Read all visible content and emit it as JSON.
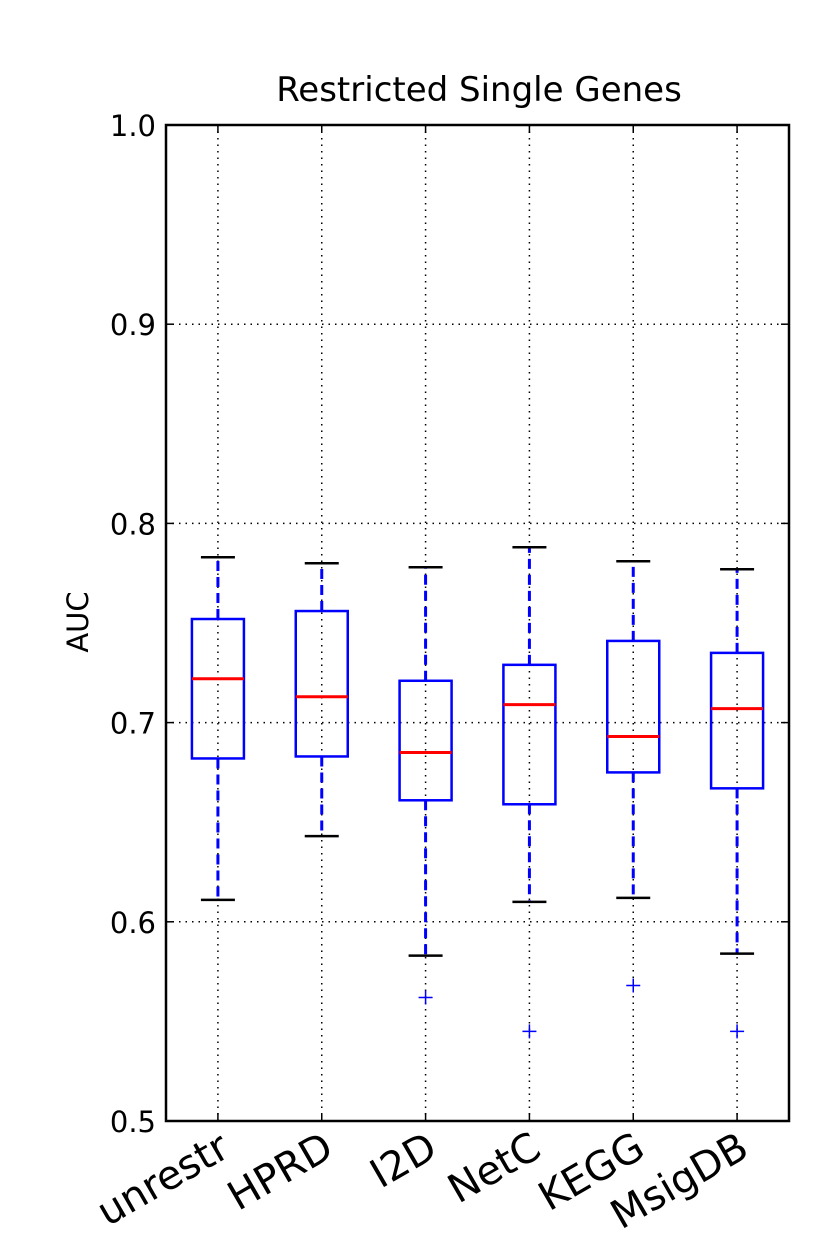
{
  "chart_data": {
    "type": "boxplot",
    "title": "Restricted Single Genes",
    "xlabel": "",
    "ylabel": "AUC",
    "ylim": [
      0.5,
      1.0
    ],
    "yticks": [
      "0.5",
      "0.6",
      "0.7",
      "0.8",
      "0.9",
      "1.0"
    ],
    "grid": true,
    "categories": [
      "unrestr",
      "HPRD",
      "I2D",
      "NetC",
      "KEGG",
      "MsigDB"
    ],
    "boxes": [
      {
        "whisker_low": 0.611,
        "q1": 0.682,
        "median": 0.722,
        "q3": 0.752,
        "whisker_high": 0.783,
        "outliers": []
      },
      {
        "whisker_low": 0.643,
        "q1": 0.683,
        "median": 0.713,
        "q3": 0.756,
        "whisker_high": 0.78,
        "outliers": []
      },
      {
        "whisker_low": 0.583,
        "q1": 0.661,
        "median": 0.685,
        "q3": 0.721,
        "whisker_high": 0.778,
        "outliers": [
          0.562
        ]
      },
      {
        "whisker_low": 0.61,
        "q1": 0.659,
        "median": 0.709,
        "q3": 0.729,
        "whisker_high": 0.788,
        "outliers": [
          0.545
        ]
      },
      {
        "whisker_low": 0.612,
        "q1": 0.675,
        "median": 0.693,
        "q3": 0.741,
        "whisker_high": 0.781,
        "outliers": [
          0.568
        ]
      },
      {
        "whisker_low": 0.584,
        "q1": 0.667,
        "median": 0.707,
        "q3": 0.735,
        "whisker_high": 0.777,
        "outliers": [
          0.545
        ]
      }
    ],
    "colors": {
      "box": "#0000ff",
      "median": "#ff0000",
      "whisker_cap": "#000000",
      "outlier": "#0000ff",
      "grid": "#000000"
    }
  }
}
